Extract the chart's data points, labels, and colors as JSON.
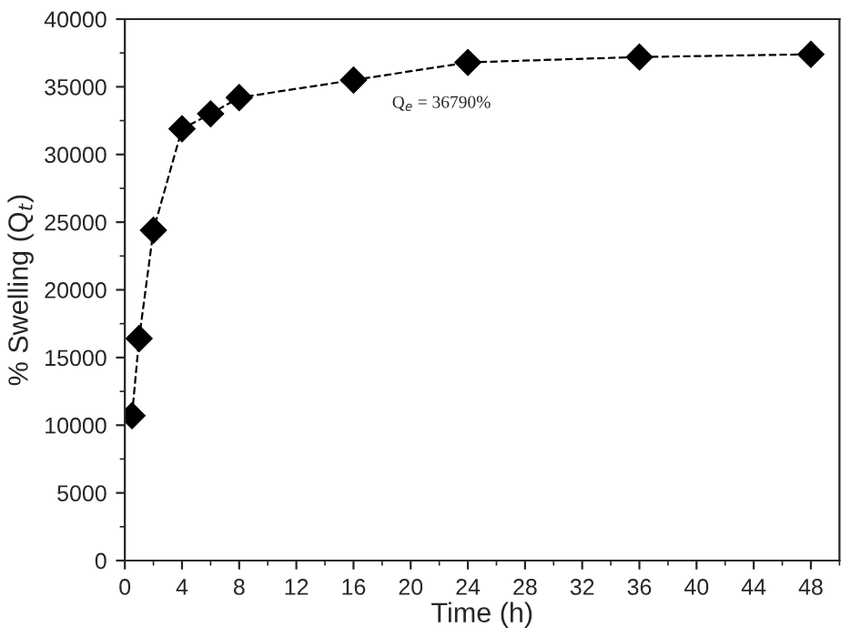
{
  "chart_data": {
    "type": "line",
    "xlabel": "Time (h)",
    "ylabel": "% Swelling (Q$_{t}$)",
    "x": [
      0.5,
      1,
      2,
      4,
      6,
      8,
      16,
      24,
      36,
      48
    ],
    "series": [
      {
        "color": "#000000",
        "values": [
          10700,
          16400,
          24400,
          31900,
          33000,
          34200,
          35500,
          36800,
          37200,
          37400
        ]
      }
    ],
    "marker": "diamond",
    "line_style": "dashed",
    "xlim": [
      0,
      50
    ],
    "xticks": [
      0,
      4,
      8,
      12,
      16,
      20,
      24,
      28,
      32,
      36,
      40,
      44,
      48
    ],
    "ylim": [
      0,
      40000
    ],
    "yticks": [
      0,
      5000,
      10000,
      15000,
      20000,
      25000,
      30000,
      35000,
      40000
    ],
    "annotations": [
      {
        "text": "Q$_{e}$ = 36790%",
        "x": 24,
        "y": 36800
      }
    ]
  }
}
